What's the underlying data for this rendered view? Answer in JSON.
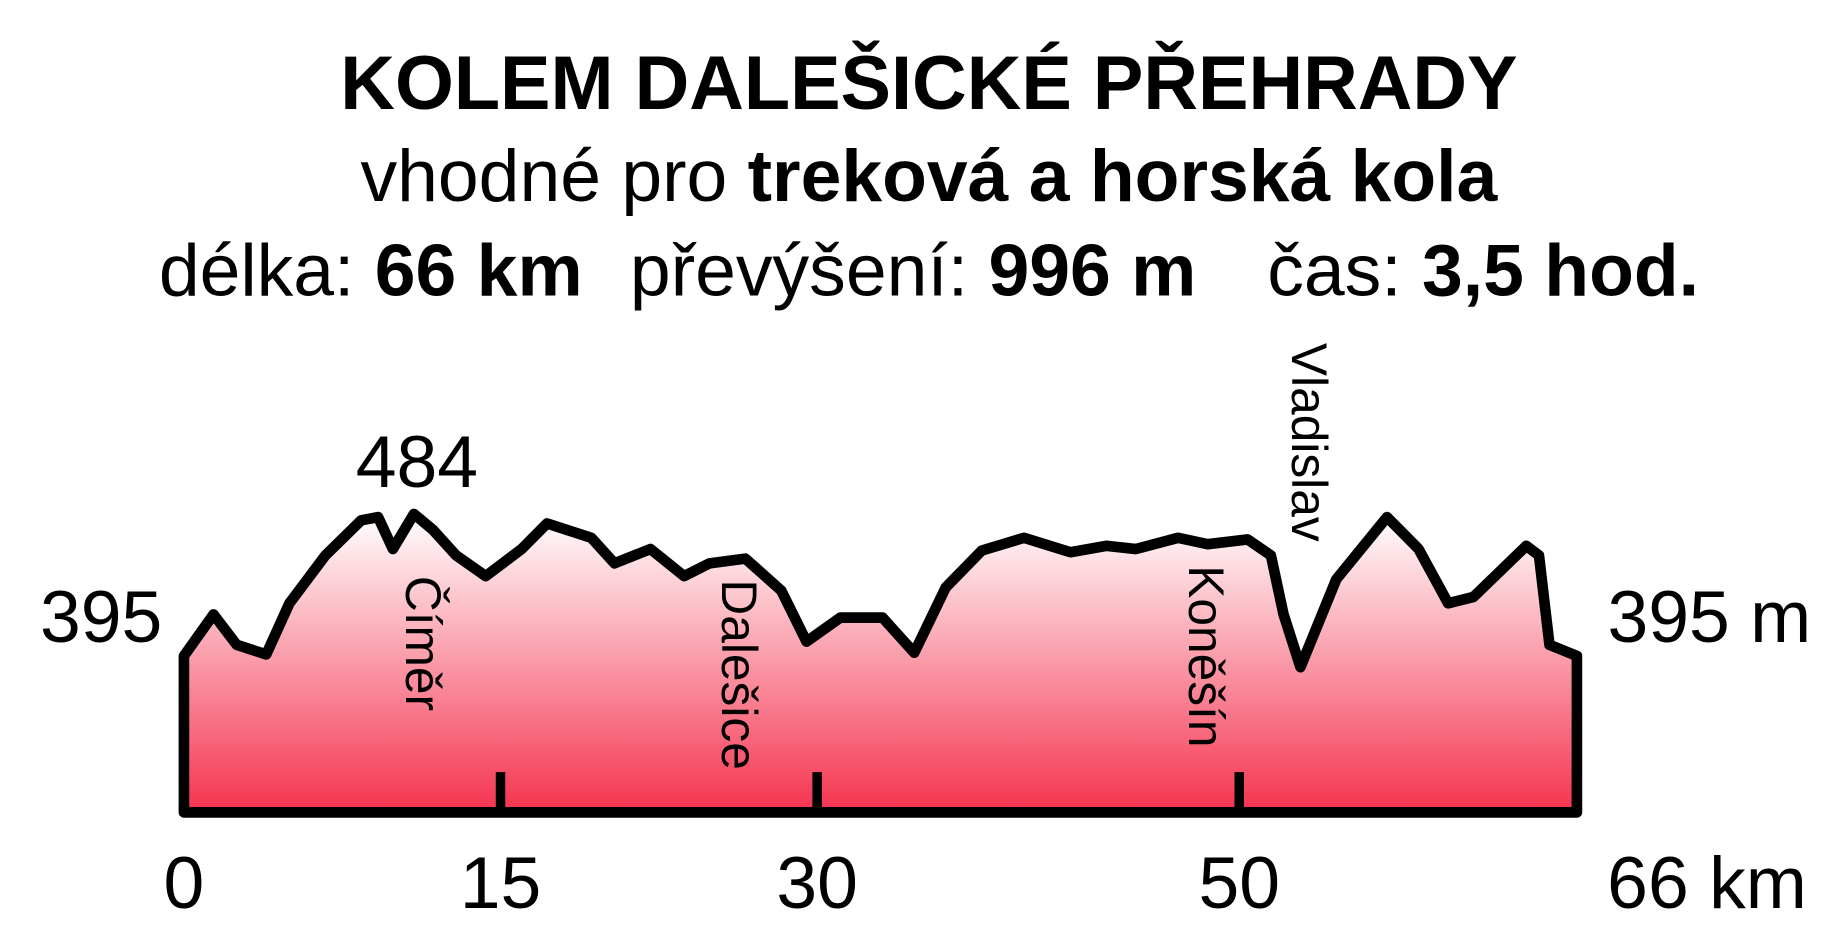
{
  "chart_data": {
    "type": "area",
    "title": "KOLEM DALEŠICKÉ PŘEHRADY",
    "subtitle": [
      "vhodné pro ",
      "treková a horská kola"
    ],
    "stats": [
      "délka: ",
      "66 km",
      "převýšení: ",
      "996 m",
      "čas: ",
      "3,5 hod."
    ],
    "x": [
      0,
      1.4,
      2.5,
      3.9,
      5.0,
      6.7,
      8.4,
      9.2,
      9.9,
      10.9,
      11.8,
      12.9,
      14.3,
      16.0,
      17.2,
      19.3,
      20.4,
      22.1,
      23.7,
      24.9,
      26.6,
      28.3,
      29.5,
      31.1,
      33.1,
      34.6,
      36.1,
      37.8,
      39.8,
      42.0,
      43.7,
      45.1,
      47.1,
      48.5,
      50.4,
      51.5,
      52.1,
      52.9,
      54.6,
      57.0,
      58.5,
      59.9,
      61.1,
      63.6,
      64.2,
      64.7,
      66.0
    ],
    "values": [
      395,
      421,
      402,
      396,
      428,
      458,
      480,
      482,
      462,
      484,
      474,
      458,
      445,
      462,
      478,
      469,
      453,
      462,
      445,
      453,
      456,
      436,
      404,
      419,
      419,
      397,
      438,
      461,
      469,
      460,
      464,
      462,
      469,
      465,
      468,
      458,
      421,
      388,
      443,
      482,
      462,
      428,
      432,
      464,
      458,
      402,
      395
    ],
    "xlim": [
      0,
      66
    ],
    "ylim": [
      297,
      500
    ],
    "xticks": [
      0,
      15,
      30,
      50,
      {
        "value": 66,
        "label": "66 km"
      }
    ],
    "elevation_labels": [
      "395",
      "484",
      "395 m"
    ],
    "places": [
      "Číměr",
      "Dalešice",
      "Koněšín",
      "Vladislav"
    ],
    "colors": [
      "#ffffff",
      "#f5334f"
    ]
  }
}
